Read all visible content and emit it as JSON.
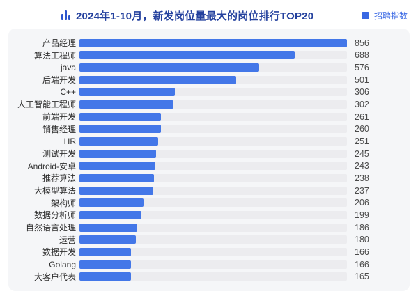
{
  "header": {
    "title": "2024年1-10月，新发岗位量最大的岗位排行TOP20",
    "legend_label": "招聘指数"
  },
  "colors": {
    "bar": "#4377e8",
    "track": "#ececef",
    "card_bg": "#f5f6f8",
    "title": "#24419e",
    "legend_swatch": "#3968e3",
    "legend_text": "#3d6be5",
    "label_text": "#2f2f2f",
    "value_text": "#4b4b4b",
    "icon": "#2c55cc"
  },
  "chart_data": {
    "type": "bar",
    "orientation": "horizontal",
    "title": "2024年1-10月，新发岗位量最大的岗位排行TOP20",
    "legend": [
      "招聘指数"
    ],
    "legend_position": "top-right",
    "categories": [
      "产品经理",
      "算法工程师",
      "java",
      "后端开发",
      "C++",
      "人工智能工程师",
      "前端开发",
      "销售经理",
      "HR",
      "测试开发",
      "Android-安卓",
      "推荐算法",
      "大模型算法",
      "架构师",
      "数据分析师",
      "自然语言处理",
      "运营",
      "数据开发",
      "Golang",
      "大客户代表"
    ],
    "values": [
      856,
      688,
      576,
      501,
      306,
      302,
      261,
      260,
      251,
      245,
      243,
      238,
      237,
      206,
      199,
      186,
      180,
      166,
      166,
      165
    ],
    "xlabel": "",
    "ylabel": "",
    "xlim": [
      0,
      856
    ],
    "grid": false,
    "value_labels": "right"
  }
}
